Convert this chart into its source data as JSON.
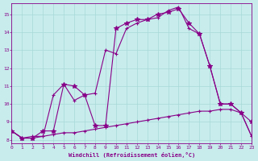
{
  "xlabel": "Windchill (Refroidissement éolien,°C)",
  "xlim": [
    0,
    23
  ],
  "ylim": [
    7.8,
    15.6
  ],
  "yticks": [
    8,
    9,
    10,
    11,
    12,
    13,
    14,
    15
  ],
  "xticks": [
    0,
    1,
    2,
    3,
    4,
    5,
    6,
    7,
    8,
    9,
    10,
    11,
    12,
    13,
    14,
    15,
    16,
    17,
    18,
    19,
    20,
    21,
    22,
    23
  ],
  "bg_color": "#c8ecec",
  "grid_color": "#a8d8d8",
  "line_color": "#880088",
  "line1_x": [
    0,
    1,
    2,
    3,
    4,
    5,
    6,
    7,
    8,
    9,
    10,
    11,
    12,
    13,
    14,
    15,
    16,
    17,
    18,
    19,
    20,
    21,
    22,
    23
  ],
  "line1_y": [
    8.5,
    8.1,
    8.1,
    8.2,
    8.3,
    8.4,
    8.4,
    8.5,
    8.6,
    8.7,
    8.8,
    8.9,
    9.0,
    9.1,
    9.2,
    9.3,
    9.4,
    9.5,
    9.6,
    9.6,
    9.7,
    9.7,
    9.5,
    8.2
  ],
  "line2_x": [
    0,
    1,
    2,
    3,
    4,
    5,
    6,
    7,
    8,
    9,
    10,
    11,
    12,
    13,
    14,
    15,
    16,
    17,
    18,
    19,
    20,
    21,
    22,
    23
  ],
  "line2_y": [
    8.5,
    8.1,
    8.1,
    8.5,
    8.5,
    11.1,
    11.0,
    10.5,
    8.8,
    8.8,
    14.2,
    14.5,
    14.7,
    14.7,
    15.0,
    15.1,
    15.3,
    14.5,
    13.9,
    12.1,
    10.0,
    10.0,
    9.5,
    9.0
  ],
  "line3_x": [
    0,
    1,
    2,
    3,
    4,
    5,
    6,
    7,
    8,
    9,
    10,
    11,
    12,
    13,
    14,
    15,
    16,
    17,
    18,
    19,
    20,
    21,
    22,
    23
  ],
  "line3_y": [
    8.5,
    8.1,
    8.2,
    8.2,
    10.5,
    11.1,
    10.2,
    10.5,
    10.6,
    13.0,
    12.8,
    14.2,
    14.5,
    14.7,
    14.8,
    15.2,
    15.4,
    14.2,
    13.9,
    12.1,
    10.0,
    10.0,
    9.5,
    8.2
  ]
}
